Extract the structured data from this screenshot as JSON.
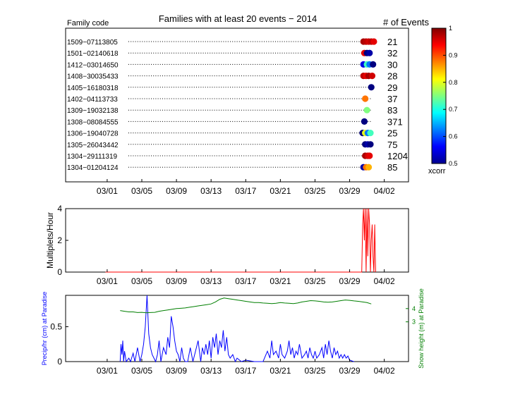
{
  "colors": {
    "frame": "#000000",
    "multiplets_line": "#ff0000",
    "precip_line": "#0000ff",
    "snow_line": "#007f00",
    "precip_label": "#0000ff",
    "snow_label": "#007f00"
  },
  "chart_data": [
    {
      "type": "scatter",
      "title": "Families with at least 20 events − 2014",
      "left_header": "Family code",
      "right_header": "# of Events",
      "x_ticks": [
        "03/01",
        "03/05",
        "03/09",
        "03/13",
        "03/17",
        "03/21",
        "03/25",
        "03/29",
        "04/02"
      ],
      "x_tick_days": [
        0,
        4,
        8,
        12,
        16,
        20,
        24,
        28,
        32
      ],
      "xlim_days": [
        -4.8,
        34.8
      ],
      "families": [
        {
          "code": "1509−07113805",
          "events": "21",
          "xcorr": [
            0.98,
            0.97,
            0.96,
            0.97,
            0.95
          ]
        },
        {
          "code": "1501−02140618",
          "events": "32",
          "xcorr": [
            0.95,
            0.5,
            0.52
          ]
        },
        {
          "code": "1412−03014650",
          "events": "30",
          "xcorr": [
            0.55,
            0.72,
            0.62,
            0.5
          ]
        },
        {
          "code": "1408−30035433",
          "events": "28",
          "xcorr": [
            0.97,
            0.95,
            0.98,
            0.96
          ]
        },
        {
          "code": "1405−16180318",
          "events": "29",
          "xcorr": [
            0.5
          ]
        },
        {
          "code": "1402−04113733",
          "events": "37",
          "xcorr": [
            0.88
          ]
        },
        {
          "code": "1309−19032138",
          "events": "83",
          "xcorr": [
            0.75
          ]
        },
        {
          "code": "1308−08084555",
          "events": "371",
          "xcorr": [
            0.5
          ]
        },
        {
          "code": "1306−19040728",
          "events": "25",
          "xcorr": [
            0.5,
            0.8,
            0.62,
            0.72
          ]
        },
        {
          "code": "1305−26043442",
          "events": "75",
          "xcorr": [
            0.5,
            0.52,
            0.5
          ]
        },
        {
          "code": "1304−29111319",
          "events": "1204",
          "xcorr": [
            0.98,
            0.96,
            0.95
          ]
        },
        {
          "code": "1304−01204124",
          "events": "85",
          "xcorr": [
            0.52,
            0.88,
            0.85
          ]
        }
      ],
      "event_days": [
        [
          29.6,
          29.9,
          30.2,
          30.5,
          30.8
        ],
        [
          29.7,
          30.0,
          30.3
        ],
        [
          29.6,
          30.0,
          30.3,
          30.7
        ],
        [
          29.6,
          29.9,
          30.2,
          30.6
        ],
        [
          30.5
        ],
        [
          29.8
        ],
        [
          30.0
        ],
        [
          29.7
        ],
        [
          29.5,
          29.8,
          30.1,
          30.4
        ],
        [
          29.8,
          30.1,
          30.4
        ],
        [
          29.8,
          30.1,
          30.3
        ],
        [
          29.6,
          29.9,
          30.2
        ]
      ],
      "colorbar": {
        "label": "xcorr",
        "ticks": [
          "0.5",
          "0.6",
          "0.7",
          "0.8",
          "0.9",
          "1"
        ],
        "range": [
          0.5,
          1
        ]
      }
    },
    {
      "type": "line",
      "ylabel": "Multiplets/Hour",
      "x_ticks": [
        "03/01",
        "03/05",
        "03/09",
        "03/13",
        "03/17",
        "03/21",
        "03/25",
        "03/29",
        "04/02"
      ],
      "y_ticks": [
        "0",
        "2",
        "4"
      ],
      "ylim": [
        0,
        4
      ],
      "x_days": [
        -0.2,
        29.3,
        29.4,
        29.5,
        29.6,
        29.7,
        29.8,
        29.9,
        30.0,
        30.1,
        30.2,
        30.3,
        30.4,
        30.5,
        30.6,
        30.7,
        30.8,
        30.9,
        31.0
      ],
      "values": [
        0,
        0,
        0,
        3,
        4,
        2,
        4,
        0,
        4,
        1,
        4,
        3,
        0,
        2,
        3,
        1,
        0,
        3,
        0
      ]
    },
    {
      "type": "line",
      "ylabel": "Precip/hr (cm) at Paradise",
      "y2label": "Snow height (m) at Paradise",
      "x_ticks": [
        "03/01",
        "03/05",
        "03/09",
        "03/13",
        "03/17",
        "03/21",
        "03/25",
        "03/29",
        "04/02"
      ],
      "y_ticks": [
        "0",
        "0.5"
      ],
      "y2_ticks": [
        "3",
        "4"
      ],
      "ylim": [
        0,
        0.95
      ],
      "y2lim": [
        0,
        5
      ],
      "series": [
        {
          "axis": "left",
          "x_days": [
            1.5,
            1.6,
            1.7,
            1.8,
            1.9,
            2.0,
            2.2,
            2.5,
            2.7,
            3.0,
            3.2,
            3.5,
            3.8,
            4.0,
            4.2,
            4.4,
            4.6,
            4.8,
            5.0,
            5.2,
            5.4,
            5.6,
            5.8,
            6.0,
            6.2,
            6.5,
            6.8,
            7.0,
            7.2,
            7.4,
            7.6,
            7.8,
            8.0,
            8.2,
            8.4,
            8.6,
            8.8,
            9.0,
            9.3,
            9.6,
            9.9,
            10.2,
            10.5,
            10.8,
            11.0,
            11.2,
            11.4,
            11.6,
            11.8,
            12.0,
            12.2,
            12.4,
            12.6,
            12.8,
            13.0,
            13.2,
            13.4,
            13.6,
            13.8,
            14.0,
            14.2,
            14.5,
            14.8,
            15.0,
            15.5,
            16.0,
            17.0,
            18.0,
            18.5,
            18.8,
            19.0,
            19.2,
            19.5,
            19.8,
            20.0,
            20.2,
            20.5,
            20.8,
            21.0,
            21.2,
            21.4,
            21.6,
            21.8,
            22.0,
            22.2,
            22.5,
            22.8,
            23.0,
            23.2,
            23.4,
            23.6,
            23.8,
            24.0,
            24.2,
            24.5,
            24.8,
            25.0,
            25.2,
            25.4,
            25.6,
            25.8,
            26.0,
            26.2,
            26.4,
            26.6,
            26.8,
            27.0,
            27.2,
            27.4,
            27.6,
            27.8,
            28.0,
            28.5
          ],
          "values": [
            0,
            0.25,
            0.1,
            0.3,
            0,
            0.15,
            0,
            0.05,
            0,
            0.12,
            0,
            0.2,
            0,
            0.1,
            0.25,
            0.5,
            0.95,
            0.4,
            0.2,
            0.1,
            0.05,
            0,
            0.1,
            0.3,
            0,
            0.2,
            0.1,
            0.35,
            0.2,
            0.65,
            0.5,
            0.3,
            0.15,
            0.1,
            0,
            0.2,
            0.05,
            0,
            0,
            0.2,
            0,
            0.15,
            0.3,
            0,
            0.2,
            0.1,
            0.25,
            0.1,
            0.3,
            0.05,
            0.35,
            0.2,
            0.4,
            0.1,
            0.3,
            0.2,
            0.45,
            0.15,
            0.35,
            0.1,
            0.05,
            0.1,
            0,
            0.05,
            0,
            0.02,
            0,
            0,
            0.15,
            0.05,
            0.3,
            0.1,
            0.15,
            0.05,
            0.25,
            0.1,
            0.05,
            0.15,
            0.3,
            0.1,
            0.2,
            0.05,
            0.15,
            0.1,
            0.25,
            0.05,
            0.1,
            0.15,
            0.05,
            0.2,
            0.1,
            0.05,
            0.15,
            0.05,
            0.1,
            0.2,
            0.05,
            0.25,
            0.1,
            0.3,
            0.15,
            0.05,
            0.2,
            0.1,
            0.15,
            0.05,
            0.1,
            0.05,
            0.1,
            0.05,
            0.08,
            0.02,
            0
          ]
        },
        {
          "axis": "right",
          "x_days": [
            1.5,
            2.0,
            2.5,
            3.0,
            3.5,
            4.0,
            4.5,
            5.0,
            5.5,
            6.0,
            6.5,
            7.0,
            7.5,
            8.0,
            8.5,
            9.0,
            9.5,
            10.0,
            10.5,
            11.0,
            11.5,
            12.0,
            12.5,
            13.0,
            13.5,
            14.0,
            14.5,
            15.0,
            15.5,
            16.0,
            16.5,
            17.0,
            17.5,
            18.0,
            18.5,
            19.0,
            19.5,
            20.0,
            20.5,
            21.0,
            21.5,
            22.0,
            22.5,
            23.0,
            23.5,
            24.0,
            24.5,
            25.0,
            25.5,
            26.0,
            26.5,
            27.0,
            27.5,
            28.0,
            28.5,
            29.0,
            29.5,
            30.0,
            30.5
          ],
          "values": [
            3.85,
            3.8,
            3.75,
            3.75,
            3.7,
            3.72,
            3.68,
            3.7,
            3.72,
            3.8,
            3.85,
            3.9,
            3.95,
            4.0,
            4.02,
            4.05,
            4.1,
            4.15,
            4.2,
            4.25,
            4.3,
            4.35,
            4.5,
            4.7,
            4.8,
            4.75,
            4.7,
            4.65,
            4.6,
            4.55,
            4.5,
            4.45,
            4.45,
            4.42,
            4.4,
            4.38,
            4.4,
            4.45,
            4.42,
            4.4,
            4.38,
            4.42,
            4.5,
            4.55,
            4.6,
            4.58,
            4.55,
            4.5,
            4.48,
            4.5,
            4.55,
            4.6,
            4.65,
            4.62,
            4.58,
            4.55,
            4.5,
            4.45,
            4.35
          ]
        }
      ]
    }
  ]
}
